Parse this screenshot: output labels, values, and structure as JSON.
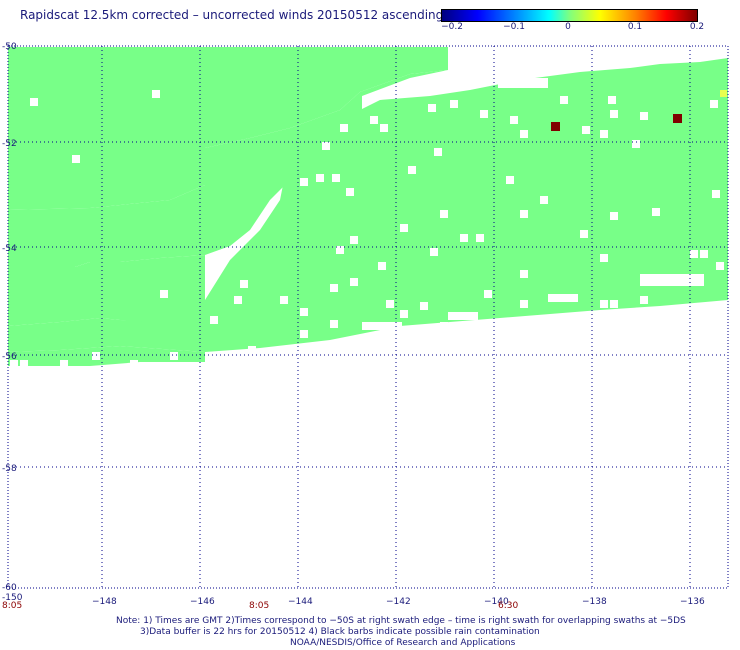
{
  "title": "Rapidscat 12.5km corrected – uncorrected winds 20150512 ascending",
  "colorbar": {
    "ticks": [
      "−0.2",
      "−0.1",
      "0",
      "0.1",
      "0.2"
    ],
    "colors": [
      "#00007f",
      "#0000ff",
      "#00ffff",
      "#7fff7f",
      "#ffff00",
      "#ff8000",
      "#ff0000",
      "#7f0000"
    ]
  },
  "map": {
    "lon_ticks": [
      "-150",
      "−148",
      "−146",
      "−144",
      "−142",
      "−140",
      "−138",
      "−136"
    ],
    "lat_ticks": [
      "-50",
      "-52",
      "-54",
      "-56",
      "-58",
      "-60"
    ],
    "time_labels": [
      "8:05",
      "8:05",
      "6:30"
    ],
    "fill_color": "#78ff88",
    "highlight_color": "#800000",
    "grid_color": "#00008b"
  },
  "notes": {
    "line1": "Note: 1) Times are GMT 2)Times correspond to −50S at right swath edge – time is right swath for overlapping swaths at −5DS",
    "line2": "3)Data buffer is 22 hrs for 20150512 4) Black barbs indicate possible rain contamination",
    "line3": "NOAA/NESDIS/Office of Research and Applications"
  }
}
